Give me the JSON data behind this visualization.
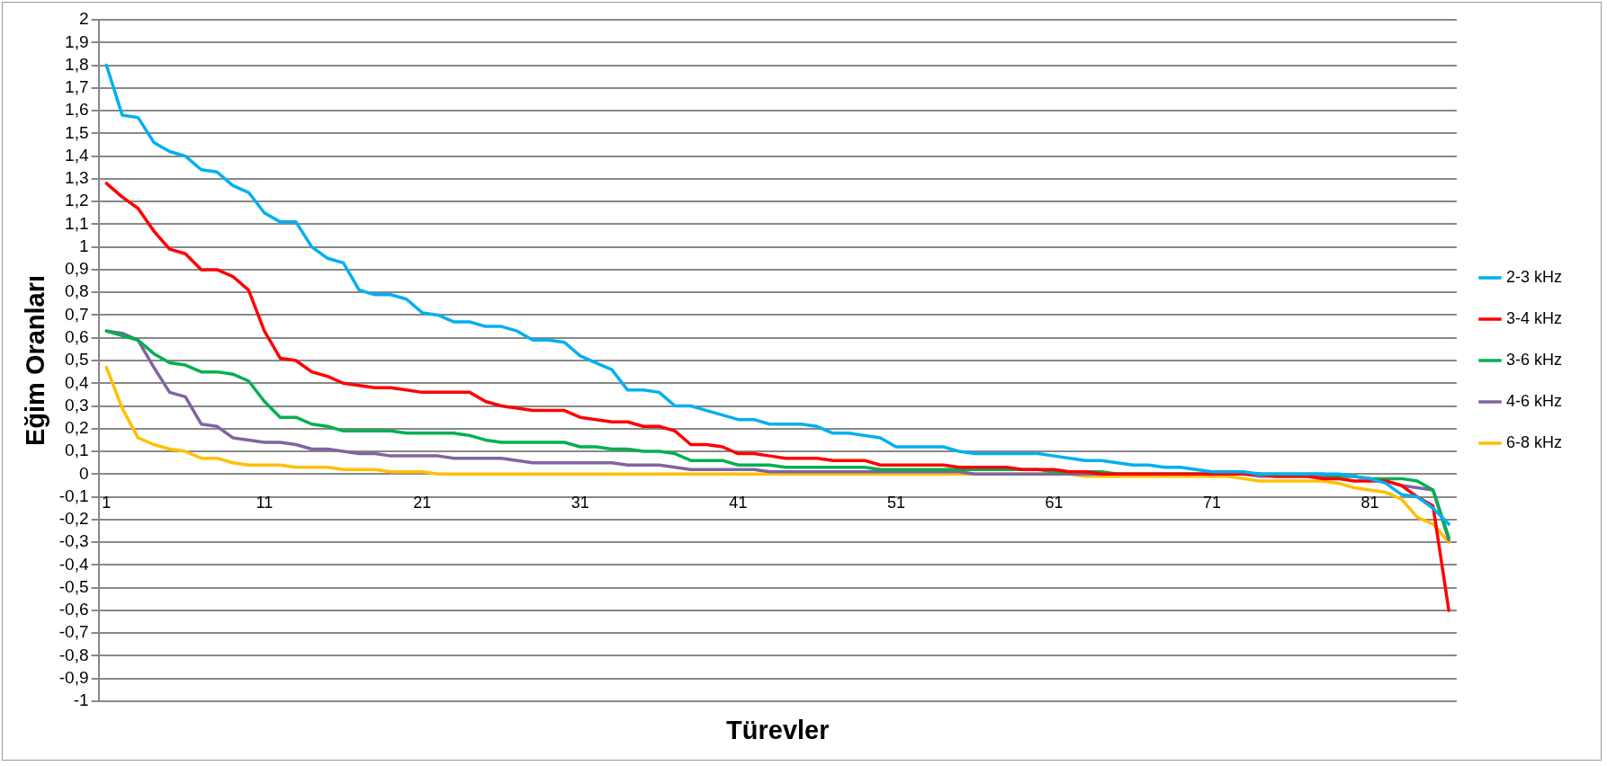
{
  "chart_data": {
    "type": "line",
    "xlabel": "Türevler",
    "ylabel": "Eğim Oranları",
    "categories": [
      "1",
      null,
      null,
      null,
      null,
      null,
      null,
      null,
      null,
      null,
      "11",
      null,
      null,
      null,
      null,
      null,
      null,
      null,
      null,
      null,
      "21",
      null,
      null,
      null,
      null,
      null,
      null,
      null,
      null,
      null,
      "31",
      null,
      null,
      null,
      null,
      null,
      null,
      null,
      null,
      null,
      "41",
      null,
      null,
      null,
      null,
      null,
      null,
      null,
      null,
      null,
      "51",
      null,
      null,
      null,
      null,
      null,
      null,
      null,
      null,
      null,
      "61",
      null,
      null,
      null,
      null,
      null,
      null,
      null,
      null,
      null,
      "71",
      null,
      null,
      null,
      null,
      null,
      null,
      null,
      null,
      null,
      "81",
      null,
      null,
      null,
      null,
      null
    ],
    "series": [
      {
        "name": "2-3 kHz",
        "color": "#00b0f0",
        "values": [
          1.8,
          1.58,
          1.57,
          1.46,
          1.42,
          1.4,
          1.34,
          1.33,
          1.27,
          1.24,
          1.15,
          1.11,
          1.11,
          1.0,
          0.95,
          0.93,
          0.81,
          0.79,
          0.79,
          0.77,
          0.71,
          0.7,
          0.67,
          0.67,
          0.65,
          0.65,
          0.63,
          0.59,
          0.59,
          0.58,
          0.52,
          0.49,
          0.46,
          0.37,
          0.37,
          0.36,
          0.3,
          0.3,
          0.28,
          0.26,
          0.24,
          0.24,
          0.22,
          0.22,
          0.22,
          0.21,
          0.18,
          0.18,
          0.17,
          0.16,
          0.12,
          0.12,
          0.12,
          0.12,
          0.1,
          0.09,
          0.09,
          0.09,
          0.09,
          0.09,
          0.08,
          0.07,
          0.06,
          0.06,
          0.05,
          0.04,
          0.04,
          0.03,
          0.03,
          0.02,
          0.01,
          0.01,
          0.01,
          0,
          0,
          0,
          0,
          0,
          0,
          -0.01,
          -0.02,
          -0.04,
          -0.09,
          -0.1,
          -0.15,
          -0.22
        ]
      },
      {
        "name": "3-4 kHz",
        "color": "#ff0000",
        "values": [
          1.28,
          1.22,
          1.17,
          1.07,
          0.99,
          0.97,
          0.9,
          0.9,
          0.87,
          0.81,
          0.63,
          0.51,
          0.5,
          0.45,
          0.43,
          0.4,
          0.39,
          0.38,
          0.38,
          0.37,
          0.36,
          0.36,
          0.36,
          0.36,
          0.32,
          0.3,
          0.29,
          0.28,
          0.28,
          0.28,
          0.25,
          0.24,
          0.23,
          0.23,
          0.21,
          0.21,
          0.19,
          0.13,
          0.13,
          0.12,
          0.09,
          0.09,
          0.08,
          0.07,
          0.07,
          0.07,
          0.06,
          0.06,
          0.06,
          0.04,
          0.04,
          0.04,
          0.04,
          0.04,
          0.03,
          0.03,
          0.03,
          0.03,
          0.02,
          0.02,
          0.02,
          0.01,
          0.01,
          0,
          0,
          0,
          0,
          0,
          0,
          0,
          0,
          0,
          0,
          0,
          -0.01,
          -0.01,
          -0.01,
          -0.02,
          -0.02,
          -0.03,
          -0.03,
          -0.03,
          -0.05,
          -0.1,
          -0.14,
          -0.6
        ]
      },
      {
        "name": "3-6 kHz",
        "color": "#00b050",
        "values": [
          0.63,
          0.61,
          0.59,
          0.53,
          0.49,
          0.48,
          0.45,
          0.45,
          0.44,
          0.41,
          0.32,
          0.25,
          0.25,
          0.22,
          0.21,
          0.19,
          0.19,
          0.19,
          0.19,
          0.18,
          0.18,
          0.18,
          0.18,
          0.17,
          0.15,
          0.14,
          0.14,
          0.14,
          0.14,
          0.14,
          0.12,
          0.12,
          0.11,
          0.11,
          0.1,
          0.1,
          0.09,
          0.06,
          0.06,
          0.06,
          0.04,
          0.04,
          0.04,
          0.03,
          0.03,
          0.03,
          0.03,
          0.03,
          0.03,
          0.02,
          0.02,
          0.02,
          0.02,
          0.02,
          0.02,
          0.02,
          0.02,
          0.02,
          0.02,
          0.02,
          0.01,
          0.01,
          0.01,
          0.01,
          0,
          0,
          0,
          0,
          0,
          0,
          0,
          0,
          0,
          0,
          0,
          0,
          0,
          0,
          -0.01,
          -0.01,
          -0.02,
          -0.02,
          -0.02,
          -0.03,
          -0.07,
          -0.28
        ]
      },
      {
        "name": "4-6 kHz",
        "color": "#8064a2",
        "values": [
          0.63,
          0.62,
          0.59,
          0.47,
          0.36,
          0.34,
          0.22,
          0.21,
          0.16,
          0.15,
          0.14,
          0.14,
          0.13,
          0.11,
          0.11,
          0.1,
          0.09,
          0.09,
          0.08,
          0.08,
          0.08,
          0.08,
          0.07,
          0.07,
          0.07,
          0.07,
          0.06,
          0.05,
          0.05,
          0.05,
          0.05,
          0.05,
          0.05,
          0.04,
          0.04,
          0.04,
          0.03,
          0.02,
          0.02,
          0.02,
          0.02,
          0.02,
          0.01,
          0.01,
          0.01,
          0.01,
          0.01,
          0.01,
          0.01,
          0.01,
          0.01,
          0.01,
          0.01,
          0.01,
          0.01,
          0,
          0,
          0,
          0,
          0,
          0,
          0,
          0,
          0,
          0,
          0,
          0,
          0,
          0,
          0,
          0,
          0,
          0,
          -0.01,
          -0.01,
          -0.01,
          -0.01,
          -0.01,
          -0.01,
          -0.01,
          -0.02,
          -0.03,
          -0.05,
          -0.06,
          -0.07,
          -0.29
        ]
      },
      {
        "name": "6-8 kHz",
        "color": "#ffc000",
        "values": [
          0.47,
          0.29,
          0.16,
          0.13,
          0.11,
          0.1,
          0.07,
          0.07,
          0.05,
          0.04,
          0.04,
          0.04,
          0.03,
          0.03,
          0.03,
          0.02,
          0.02,
          0.02,
          0.01,
          0.01,
          0.01,
          0,
          0,
          0,
          0,
          0,
          0,
          0,
          0,
          0,
          0,
          0,
          0,
          0,
          0,
          0,
          0,
          0,
          0,
          0,
          0,
          0,
          0,
          0,
          0,
          0,
          0,
          0,
          0,
          0,
          0,
          0,
          0,
          0,
          0,
          0,
          0,
          0,
          0,
          0,
          0,
          0,
          -0.01,
          -0.01,
          -0.01,
          -0.01,
          -0.01,
          -0.01,
          -0.01,
          -0.01,
          -0.01,
          -0.01,
          -0.02,
          -0.03,
          -0.03,
          -0.03,
          -0.03,
          -0.03,
          -0.04,
          -0.06,
          -0.07,
          -0.08,
          -0.11,
          -0.19,
          -0.22,
          -0.3
        ]
      }
    ],
    "ylim": [
      -1,
      2
    ],
    "yticks": [
      -1,
      {
        "value": -0.9,
        "label": "-0,9"
      },
      {
        "value": -0.8,
        "label": "-0,8"
      },
      {
        "value": -0.7,
        "label": "-0,7"
      },
      {
        "value": -0.6,
        "label": "-0,6"
      },
      {
        "value": -0.5,
        "label": "-0,5"
      },
      {
        "value": -0.4,
        "label": "-0,4"
      },
      {
        "value": -0.3,
        "label": "-0,3"
      },
      {
        "value": -0.2,
        "label": "-0,2"
      },
      {
        "value": -0.1,
        "label": "-0,1"
      },
      0,
      {
        "value": 0.1,
        "label": "0,1"
      },
      {
        "value": 0.2,
        "label": "0,2"
      },
      {
        "value": 0.3,
        "label": "0,3"
      },
      {
        "value": 0.4,
        "label": "0,4"
      },
      {
        "value": 0.5,
        "label": "0,5"
      },
      {
        "value": 0.6,
        "label": "0,6"
      },
      {
        "value": 0.7,
        "label": "0,7"
      },
      {
        "value": 0.8,
        "label": "0,8"
      },
      {
        "value": 0.9,
        "label": "0,9"
      },
      1,
      {
        "value": 1.1,
        "label": "1,1"
      },
      {
        "value": 1.2,
        "label": "1,2"
      },
      {
        "value": 1.3,
        "label": "1,3"
      },
      {
        "value": 1.4,
        "label": "1,4"
      },
      {
        "value": 1.5,
        "label": "1,5"
      },
      {
        "value": 1.6,
        "label": "1,6"
      },
      {
        "value": 1.7,
        "label": "1,7"
      },
      {
        "value": 1.8,
        "label": "1,8"
      },
      {
        "value": 1.9,
        "label": "1,9"
      },
      2
    ],
    "grid": "y",
    "legend": "right",
    "marker": "none",
    "line_style": "solid"
  }
}
